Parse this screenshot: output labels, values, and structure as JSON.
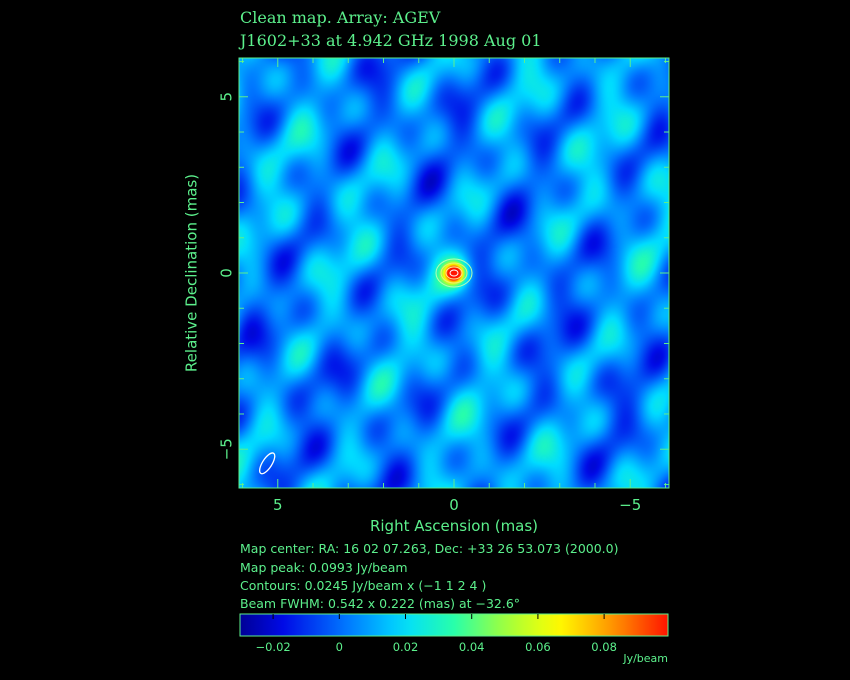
{
  "header": {
    "title_line1": "Clean map.  Array: AGEV",
    "title_line2": "J1602+33 at 4.942 GHz 1998 Aug 01"
  },
  "chart_data": {
    "type": "heatmap",
    "xlabel": "Right Ascension  (mas)",
    "ylabel": "Relative Declination  (mas)",
    "xlim": [
      6.1,
      -6.1
    ],
    "ylim": [
      -6.1,
      6.1
    ],
    "x_ticks": [
      5,
      0,
      -5
    ],
    "x_tick_labels": [
      "5",
      "0",
      "−5"
    ],
    "y_ticks": [
      5,
      0,
      -5
    ],
    "y_tick_labels": [
      "5",
      "0",
      "−5"
    ],
    "peak": {
      "x": 0,
      "y": 0,
      "value": 0.0993
    },
    "beam": {
      "major": 0.542,
      "minor": 0.222,
      "pa": -32.6,
      "x": 5.3,
      "y": -5.4
    },
    "colorbar": {
      "range": [
        -0.03,
        0.0993
      ],
      "ticks": [
        -0.02,
        0,
        0.02,
        0.04,
        0.06,
        0.08
      ],
      "tick_labels": [
        "−0.02",
        "0",
        "0.02",
        "0.04",
        "0.06",
        "0.08"
      ],
      "unit": "Jy/beam"
    }
  },
  "info": {
    "map_center": "Map center:  RA: 16 02 07.263,  Dec: +33 26 53.073 (2000.0)",
    "map_peak": "Map peak: 0.0993 Jy/beam",
    "contours": "Contours: 0.0245 Jy/beam x (−1 1 2 4 )",
    "beam_fwhm": "Beam FWHM: 0.542 x 0.222 (mas) at −32.6°"
  },
  "colors": {
    "label": "#5cf08c",
    "background": "#000000"
  }
}
